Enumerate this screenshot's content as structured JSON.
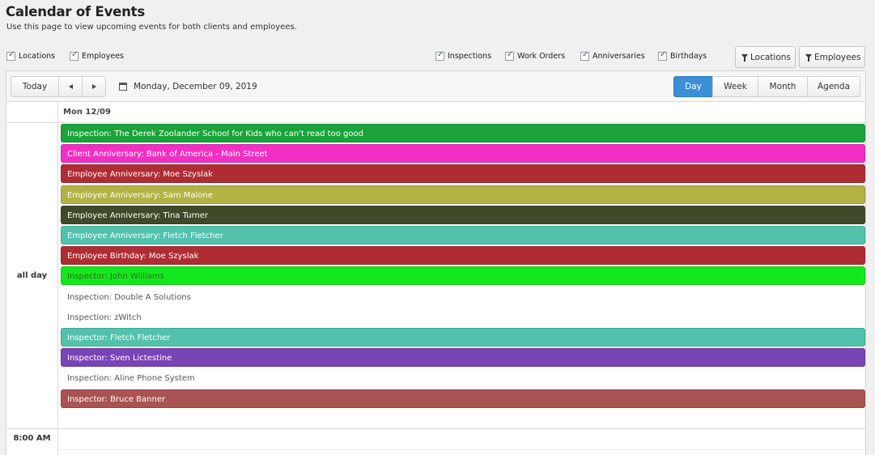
{
  "page": {
    "title": "Calendar of Events",
    "subtitle": "Use this page to view upcoming events for both clients and employees."
  },
  "filters": {
    "left": [
      {
        "label": "Locations",
        "checked": true
      },
      {
        "label": "Employees",
        "checked": true
      }
    ],
    "right": [
      {
        "label": "Inspections",
        "checked": true
      },
      {
        "label": "Work Orders",
        "checked": true
      },
      {
        "label": "Anniversaries",
        "checked": true
      },
      {
        "label": "Birthdays",
        "checked": true
      }
    ],
    "buttons": [
      {
        "label": "Locations",
        "icon": "filter-icon"
      },
      {
        "label": "Employees",
        "icon": "filter-icon"
      }
    ]
  },
  "toolbar": {
    "today_label": "Today",
    "prev_icon": "chevron-left-icon",
    "next_icon": "chevron-right-icon",
    "date_icon": "calendar-icon",
    "current_date": "Monday, December 09, 2019",
    "views": [
      {
        "label": "Day",
        "active": true
      },
      {
        "label": "Week",
        "active": false
      },
      {
        "label": "Month",
        "active": false
      },
      {
        "label": "Agenda",
        "active": false
      }
    ]
  },
  "grid": {
    "day_header": "Mon 12/09",
    "all_day_label": "all day",
    "first_time_label": "8:00 AM"
  },
  "events": [
    {
      "title": "Inspection: The Derek Zoolander School for Kids who can't read too good",
      "bg": "#1aa338",
      "fg": "#ffffff"
    },
    {
      "title": "Client Anniversary: Bank of America - Main Street",
      "bg": "#f12fc5",
      "fg": "#ffffff"
    },
    {
      "title": "Employee Anniversary: Moe Szyslak",
      "bg": "#b02c33",
      "fg": "#ffffff"
    },
    {
      "title": "Employee Anniversary: Sam Malone",
      "bg": "#b3b344",
      "fg": "#ffffff"
    },
    {
      "title": "Employee Anniversary: Tina Turner",
      "bg": "#3f4a28",
      "fg": "#ffffff"
    },
    {
      "title": "Employee Anniversary: Fletch Fletcher",
      "bg": "#52c2ad",
      "fg": "#ffffff"
    },
    {
      "title": "Employee Birthday: Moe Szyslak",
      "bg": "#b02c33",
      "fg": "#ffffff"
    },
    {
      "title": "Inspector: John Williams",
      "bg": "#14e81c",
      "fg": "#2e6b2e"
    },
    {
      "title": "Inspection: Double A Solutions",
      "bg": "#ffffff",
      "fg": "#555555"
    },
    {
      "title": "Inspection: zWitch",
      "bg": "#ffffff",
      "fg": "#555555"
    },
    {
      "title": "Inspector: Fletch Fletcher",
      "bg": "#52c2ad",
      "fg": "#ffffff"
    },
    {
      "title": "Inspector: Sven Lictestine",
      "bg": "#7a43b6",
      "fg": "#ffffff"
    },
    {
      "title": "Inspection: Aline Phone System",
      "bg": "#ffffff",
      "fg": "#555555"
    },
    {
      "title": "Inspector: Bruce Banner",
      "bg": "#aa5353",
      "fg": "#ffffff"
    }
  ]
}
